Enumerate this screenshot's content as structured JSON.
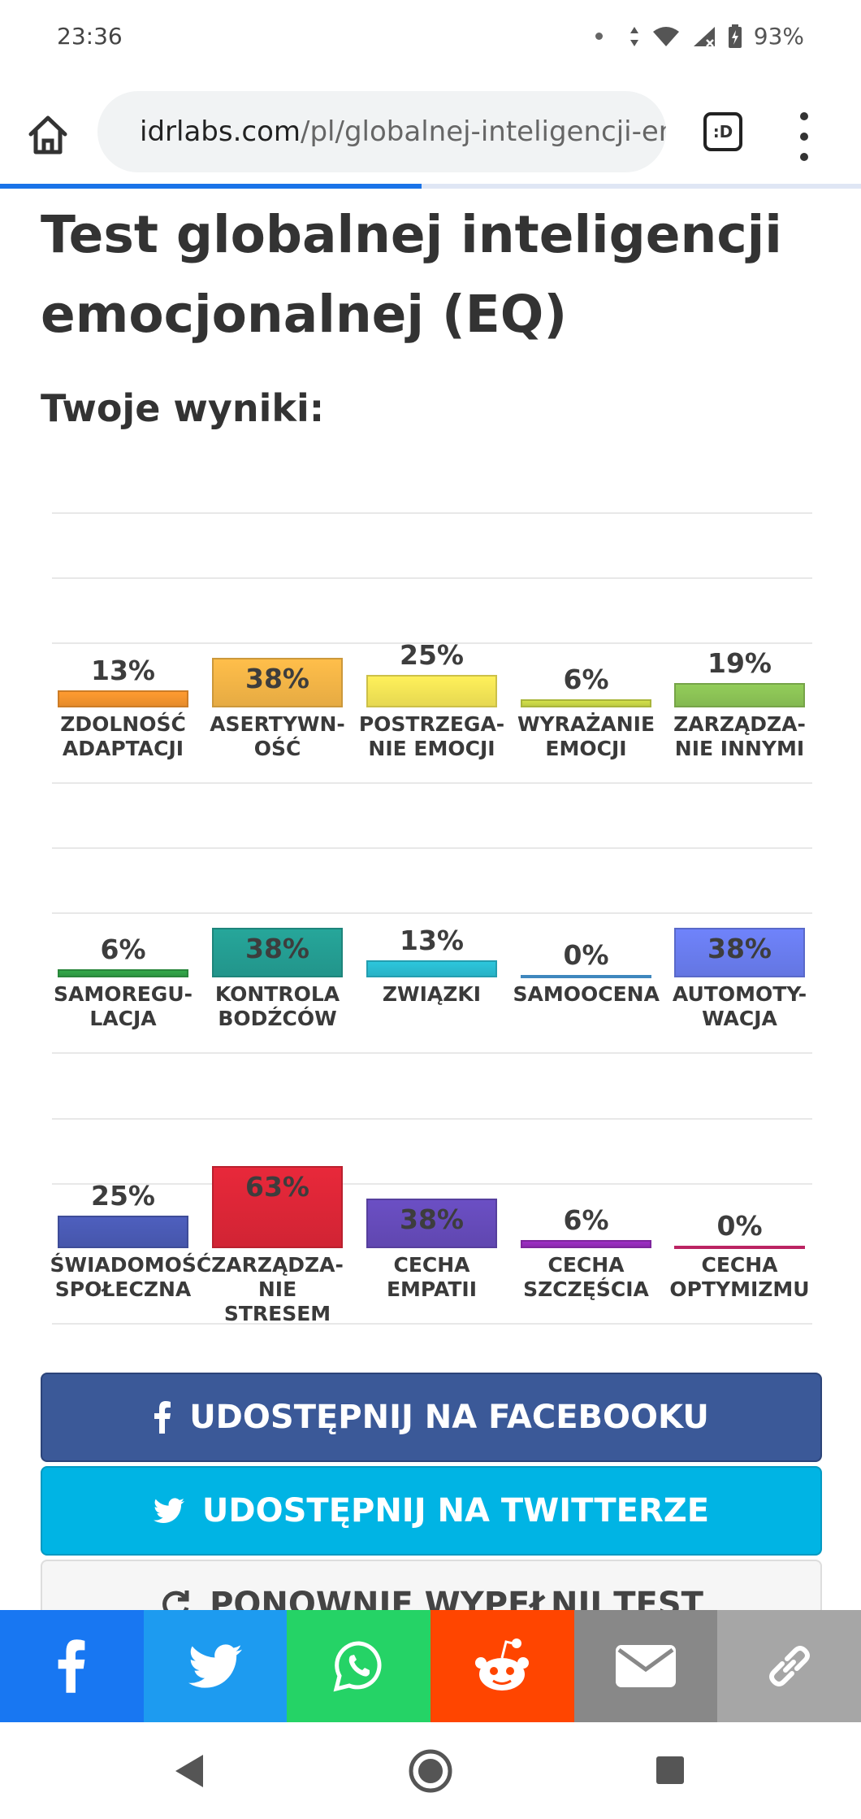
{
  "status_bar": {
    "time": "23:36",
    "battery": "93%",
    "icons": [
      "notification-dot-icon",
      "data-arrows-icon",
      "wifi-icon",
      "signal-icon",
      "battery-icon"
    ]
  },
  "browser": {
    "url_domain": "idrlabs.com",
    "url_path": "/pl/globalnej-inteligencji-er",
    "tabs_label": ":D",
    "page_load_progress": 0.49
  },
  "page": {
    "title": "Test globalnej inteligencji emocjonalnej (EQ)",
    "results_heading": "Twoje wyniki:"
  },
  "chart_data": {
    "type": "bar",
    "rows": [
      {
        "categories": [
          "ZDOLNOŚĆ ADAPTACJI",
          "ASERTYWN-OŚĆ",
          "POSTRZEGA-NIE EMOCJI",
          "WYRAŻANIE EMOCJI",
          "ZARZĄDZA-NIE INNYMI"
        ],
        "category_lines": [
          [
            "ZDOLNOŚĆ",
            "ADAPTACJI"
          ],
          [
            "ASERTYWN-",
            "OŚĆ"
          ],
          [
            "POSTRZEGA-",
            "NIE EMOCJI"
          ],
          [
            "WYRAŻANIE",
            "EMOCJI"
          ],
          [
            "ZARZĄDZA-",
            "NIE INNYMI"
          ]
        ],
        "values": [
          13,
          38,
          25,
          6,
          19
        ],
        "labels": [
          "13%",
          "38%",
          "25%",
          "6%",
          "19%"
        ],
        "colors": [
          "#ff9b30",
          "#ffbe4a",
          "#fff05a",
          "#d3e24a",
          "#93cd5a"
        ]
      },
      {
        "categories": [
          "SAMOREGU-LACJA",
          "KONTROLA BODŹCÓW",
          "ZWIĄZKI",
          "SAMOOCENA",
          "AUTOMOTY-WACJA"
        ],
        "category_lines": [
          [
            "SAMOREGU-",
            "LACJA"
          ],
          [
            "KONTROLA",
            "BODŹCÓW"
          ],
          [
            "ZWIĄZKI"
          ],
          [
            "SAMOOCENA"
          ],
          [
            "AUTOMOTY-",
            "WACJA"
          ]
        ],
        "values": [
          6,
          38,
          13,
          0,
          38
        ],
        "labels": [
          "6%",
          "38%",
          "13%",
          "0%",
          "38%"
        ],
        "colors": [
          "#33a84a",
          "#26a69a",
          "#2cc6dc",
          "#4fa9ee",
          "#6f83fb"
        ]
      },
      {
        "categories": [
          "ŚWIADOMOŚĆ SPOŁECZNA",
          "ZARZĄDZA-NIE STRESEM",
          "CECHA EMPATII",
          "CECHA SZCZĘŚCIA",
          "CECHA OPTYMIZMU"
        ],
        "category_lines": [
          [
            "ŚWIADOMOŚĆ",
            "SPOŁECZNA"
          ],
          [
            "ZARZĄDZA-",
            "NIE STRESEM"
          ],
          [
            "CECHA",
            "EMPATII"
          ],
          [
            "CECHA",
            "SZCZĘŚCIA"
          ],
          [
            "CECHA",
            "OPTYMIZMU"
          ]
        ],
        "values": [
          25,
          63,
          38,
          6,
          0
        ],
        "labels": [
          "25%",
          "63%",
          "38%",
          "6%",
          "0%"
        ],
        "colors": [
          "#4e5fbe",
          "#e8283a",
          "#6b4fc4",
          "#9d2fc4",
          "#ea2c7a"
        ]
      }
    ],
    "ylim": [
      0,
      100
    ],
    "grid": true
  },
  "actions": {
    "facebook_share": "UDOSTĘPNIJ NA FACEBOOKU",
    "twitter_share": "UDOSTĘPNIJ NA TWITTERZE",
    "retake": "PONOWNIE WYPEŁNIJ TEST"
  },
  "share_bar": [
    {
      "name": "facebook",
      "icon": "facebook-icon",
      "color": "#1877f2"
    },
    {
      "name": "twitter",
      "icon": "twitter-icon",
      "color": "#1d9bf0"
    },
    {
      "name": "whatsapp",
      "icon": "whatsapp-icon",
      "color": "#25d366"
    },
    {
      "name": "reddit",
      "icon": "reddit-icon",
      "color": "#ff4500"
    },
    {
      "name": "email",
      "icon": "email-icon",
      "color": "#888888"
    },
    {
      "name": "link",
      "icon": "link-icon",
      "color": "#a6a6a6"
    }
  ],
  "nav_bar": {
    "icons": [
      "back-icon",
      "home-icon",
      "recents-icon"
    ]
  }
}
